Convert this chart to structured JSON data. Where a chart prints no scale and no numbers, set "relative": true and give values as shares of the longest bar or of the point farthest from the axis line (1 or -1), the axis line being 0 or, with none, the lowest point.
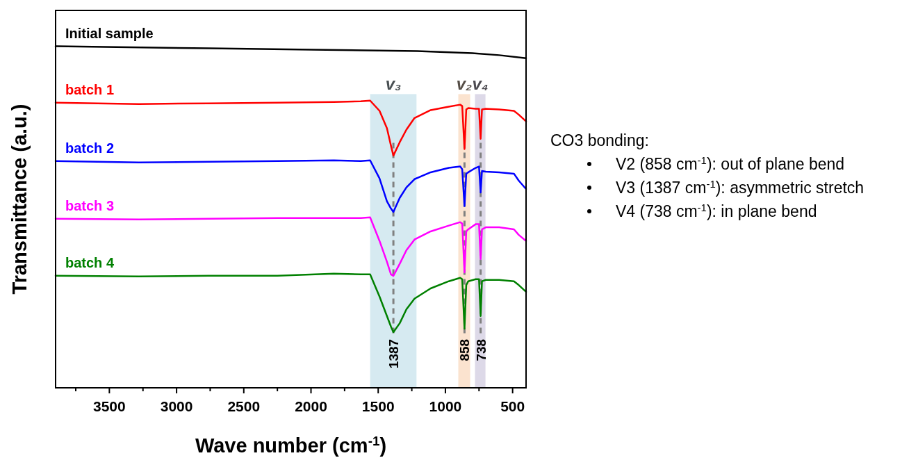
{
  "chart_data": {
    "type": "line",
    "relative": true,
    "xlabel": "Wave number (cm$^{-1}$)",
    "ylabel": "Transmittance (a.u.)",
    "xlim": [
      3900,
      400
    ],
    "xticks": [
      {
        "value": 3750,
        "label": null
      },
      3500,
      {
        "value": 3250,
        "label": null
      },
      3000,
      {
        "value": 2750,
        "label": null
      },
      2500,
      {
        "value": 2250,
        "label": null
      },
      2000,
      {
        "value": 1750,
        "label": null
      },
      1500,
      {
        "value": 1250,
        "label": null
      },
      1000,
      {
        "value": 750,
        "label": null
      },
      500
    ],
    "tick_labels": "x",
    "grid": false,
    "line_style": "solid",
    "marker": "none",
    "series": [
      {
        "name": "Initial sample",
        "color": "#000000",
        "x": [
          3900,
          2760,
          1990,
          1210,
          800,
          600,
          400
        ],
        "values": [
          1.0,
          0.994,
          0.99,
          0.986,
          0.98,
          0.974,
          0.965
        ]
      },
      {
        "name": "batch 1",
        "color": "#ff0000",
        "x": [
          3900,
          3280,
          2760,
          2250,
          1830,
          1630,
          1560,
          1490,
          1435,
          1405,
          1387,
          1340,
          1290,
          1230,
          1110,
          975,
          890,
          875,
          858,
          845,
          830,
          775,
          750,
          738,
          728,
          700,
          600,
          490,
          455,
          400
        ],
        "values": [
          0.835,
          0.831,
          0.833,
          0.835,
          0.837,
          0.839,
          0.841,
          0.811,
          0.76,
          0.709,
          0.68,
          0.719,
          0.756,
          0.79,
          0.813,
          0.823,
          0.829,
          0.825,
          0.699,
          0.815,
          0.819,
          0.817,
          0.817,
          0.729,
          0.815,
          0.817,
          0.815,
          0.811,
          0.8,
          0.78
        ]
      },
      {
        "name": "batch 2",
        "color": "#0000ff",
        "x": [
          3900,
          3280,
          2760,
          2250,
          1830,
          1630,
          1560,
          1490,
          1435,
          1405,
          1387,
          1340,
          1290,
          1230,
          1110,
          975,
          890,
          875,
          858,
          845,
          830,
          775,
          750,
          738,
          728,
          700,
          600,
          490,
          455,
          400
        ],
        "values": [
          0.664,
          0.66,
          0.662,
          0.664,
          0.666,
          0.664,
          0.666,
          0.613,
          0.546,
          0.525,
          0.515,
          0.556,
          0.587,
          0.611,
          0.631,
          0.644,
          0.648,
          0.64,
          0.532,
          0.627,
          0.631,
          0.644,
          0.648,
          0.572,
          0.635,
          0.633,
          0.631,
          0.627,
          0.607,
          0.582
        ]
      },
      {
        "name": "batch 3",
        "color": "#ff00ff",
        "x": [
          3900,
          3280,
          2760,
          2250,
          1830,
          1630,
          1560,
          1490,
          1435,
          1405,
          1387,
          1340,
          1290,
          1230,
          1110,
          975,
          890,
          875,
          858,
          845,
          830,
          775,
          750,
          738,
          728,
          700,
          600,
          490,
          455,
          400
        ],
        "values": [
          0.495,
          0.493,
          0.495,
          0.497,
          0.497,
          0.497,
          0.499,
          0.43,
          0.369,
          0.332,
          0.328,
          0.363,
          0.403,
          0.434,
          0.458,
          0.475,
          0.485,
          0.481,
          0.338,
          0.458,
          0.464,
          0.479,
          0.479,
          0.377,
          0.464,
          0.47,
          0.47,
          0.464,
          0.448,
          0.43
        ]
      },
      {
        "name": "batch 4",
        "color": "#008000",
        "x": [
          3900,
          3280,
          2760,
          2250,
          1830,
          1630,
          1560,
          1490,
          1435,
          1405,
          1387,
          1340,
          1290,
          1230,
          1110,
          975,
          890,
          875,
          858,
          845,
          830,
          775,
          750,
          738,
          728,
          700,
          600,
          490,
          455,
          400
        ],
        "values": [
          0.328,
          0.326,
          0.328,
          0.328,
          0.334,
          0.332,
          0.332,
          0.267,
          0.21,
          0.179,
          0.163,
          0.189,
          0.23,
          0.261,
          0.291,
          0.312,
          0.322,
          0.318,
          0.173,
          0.301,
          0.312,
          0.318,
          0.318,
          0.21,
          0.312,
          0.316,
          0.316,
          0.312,
          0.301,
          0.281
        ]
      }
    ],
    "bands": [
      {
        "axis": "x",
        "from": 1560,
        "to": 1215,
        "label": "v₃",
        "color": "#d6eaf1"
      },
      {
        "axis": "x",
        "from": 904,
        "to": 816,
        "label": "v₂",
        "color": "#fbe3cf"
      },
      {
        "axis": "x",
        "from": 780,
        "to": 702,
        "label": "v₄",
        "color": "#ddd9e8"
      }
    ],
    "ref_lines": [
      {
        "axis": "x",
        "value": 1387,
        "label": "1387",
        "color": "#808080",
        "line_style": "dashed"
      },
      {
        "axis": "x",
        "value": 858,
        "label": "858",
        "color": "#808080",
        "line_style": "dashed"
      },
      {
        "axis": "x",
        "value": 738,
        "label": "738",
        "color": "#808080",
        "line_style": "dashed"
      }
    ],
    "annotations": [
      "CO3 bonding:",
      "V2 (858 cm$^{-1}$): out of plane bend",
      "V3 (1387 cm$^{-1}$): asymmetric stretch",
      "V4 (738 cm$^{-1}$): in plane bend"
    ]
  }
}
